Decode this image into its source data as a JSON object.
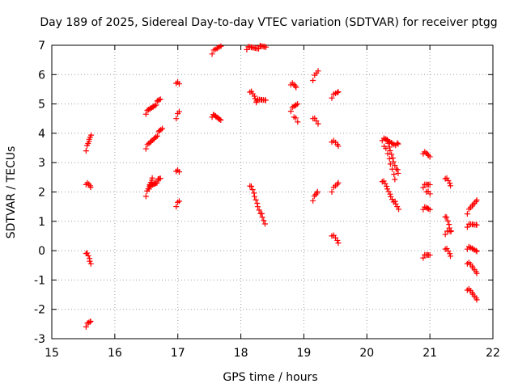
{
  "chart_data": {
    "type": "scatter",
    "title": "Day 189 of 2025, Sidereal Day-to-day VTEC variation (SDTVAR) for receiver ptgg",
    "xlabel": "GPS time / hours",
    "ylabel": "SDTVAR / TECUs",
    "xlim": [
      15,
      22
    ],
    "ylim": [
      -3,
      7
    ],
    "xticks": [
      "15",
      "16",
      "17",
      "18",
      "19",
      "20",
      "21",
      "22"
    ],
    "yticks": [
      "-3",
      "-2",
      "-1",
      "0",
      "1",
      "2",
      "3",
      "4",
      "5",
      "6",
      "7"
    ],
    "grid": true,
    "marker": "+",
    "color": "#ff0000",
    "segments": [
      {
        "x0": 15.55,
        "y0": 3.45,
        "x1": 15.62,
        "y1": 3.95,
        "n": 7
      },
      {
        "x0": 15.55,
        "y0": 2.3,
        "x1": 15.62,
        "y1": 2.15,
        "n": 5
      },
      {
        "x0": 15.55,
        "y0": -0.05,
        "x1": 15.62,
        "y1": -0.45,
        "n": 6
      },
      {
        "x0": 15.55,
        "y0": -2.55,
        "x1": 15.62,
        "y1": -2.42,
        "n": 5
      },
      {
        "x0": 16.5,
        "y0": 4.7,
        "x1": 16.72,
        "y1": 5.15,
        "n": 14
      },
      {
        "x0": 16.5,
        "y0": 3.52,
        "x1": 16.75,
        "y1": 4.15,
        "n": 14
      },
      {
        "x0": 16.5,
        "y0": 1.9,
        "x1": 16.6,
        "y1": 2.5,
        "n": 8
      },
      {
        "x0": 16.55,
        "y0": 2.15,
        "x1": 16.72,
        "y1": 2.45,
        "n": 14
      },
      {
        "x0": 16.98,
        "y0": 5.75,
        "x1": 17.02,
        "y1": 5.65,
        "n": 3
      },
      {
        "x0": 16.98,
        "y0": 4.55,
        "x1": 17.02,
        "y1": 4.7,
        "n": 3
      },
      {
        "x0": 16.98,
        "y0": 2.75,
        "x1": 17.02,
        "y1": 2.65,
        "n": 3
      },
      {
        "x0": 16.98,
        "y0": 1.55,
        "x1": 17.02,
        "y1": 1.65,
        "n": 3
      },
      {
        "x0": 17.55,
        "y0": 6.75,
        "x1": 17.68,
        "y1": 6.98,
        "n": 7
      },
      {
        "x0": 17.55,
        "y0": 4.6,
        "x1": 17.68,
        "y1": 4.5,
        "n": 10
      },
      {
        "x0": 18.1,
        "y0": 6.9,
        "x1": 18.4,
        "y1": 6.95,
        "n": 16
      },
      {
        "x0": 18.15,
        "y0": 5.45,
        "x1": 18.25,
        "y1": 5.1,
        "n": 6
      },
      {
        "x0": 18.25,
        "y0": 5.1,
        "x1": 18.4,
        "y1": 5.15,
        "n": 8
      },
      {
        "x0": 18.15,
        "y0": 2.25,
        "x1": 18.38,
        "y1": 0.9,
        "n": 14
      },
      {
        "x0": 18.8,
        "y0": 5.7,
        "x1": 18.88,
        "y1": 5.55,
        "n": 5
      },
      {
        "x0": 18.8,
        "y0": 4.8,
        "x1": 18.9,
        "y1": 5.0,
        "n": 6
      },
      {
        "x0": 18.85,
        "y0": 4.6,
        "x1": 18.9,
        "y1": 4.35,
        "n": 3
      },
      {
        "x0": 19.15,
        "y0": 5.85,
        "x1": 19.22,
        "y1": 6.1,
        "n": 4
      },
      {
        "x0": 19.15,
        "y0": 4.55,
        "x1": 19.22,
        "y1": 4.3,
        "n": 4
      },
      {
        "x0": 19.15,
        "y0": 1.75,
        "x1": 19.22,
        "y1": 2.0,
        "n": 5
      },
      {
        "x0": 19.45,
        "y0": 5.25,
        "x1": 19.55,
        "y1": 5.4,
        "n": 5
      },
      {
        "x0": 19.45,
        "y0": 3.75,
        "x1": 19.55,
        "y1": 3.55,
        "n": 5
      },
      {
        "x0": 19.45,
        "y0": 2.05,
        "x1": 19.55,
        "y1": 2.3,
        "n": 5
      },
      {
        "x0": 19.45,
        "y0": 0.55,
        "x1": 19.55,
        "y1": 0.25,
        "n": 5
      },
      {
        "x0": 20.25,
        "y0": 3.8,
        "x1": 20.5,
        "y1": 3.6,
        "n": 12
      },
      {
        "x0": 20.3,
        "y0": 3.85,
        "x1": 20.5,
        "y1": 2.6,
        "n": 12
      },
      {
        "x0": 20.28,
        "y0": 3.6,
        "x1": 20.45,
        "y1": 2.45,
        "n": 8
      },
      {
        "x0": 20.25,
        "y0": 2.4,
        "x1": 20.5,
        "y1": 1.4,
        "n": 14
      },
      {
        "x0": 20.9,
        "y0": 3.35,
        "x1": 21.0,
        "y1": 3.2,
        "n": 6
      },
      {
        "x0": 20.9,
        "y0": 2.2,
        "x1": 21.0,
        "y1": 2.25,
        "n": 6
      },
      {
        "x0": 20.95,
        "y0": 2.05,
        "x1": 21.0,
        "y1": 1.9,
        "n": 3
      },
      {
        "x0": 20.9,
        "y0": 1.45,
        "x1": 21.0,
        "y1": 1.4,
        "n": 6
      },
      {
        "x0": 20.9,
        "y0": -0.2,
        "x1": 21.0,
        "y1": -0.15,
        "n": 6
      },
      {
        "x0": 21.25,
        "y0": 2.5,
        "x1": 21.33,
        "y1": 2.2,
        "n": 5
      },
      {
        "x0": 21.25,
        "y0": 1.2,
        "x1": 21.33,
        "y1": 0.65,
        "n": 6
      },
      {
        "x0": 21.25,
        "y0": 0.6,
        "x1": 21.33,
        "y1": 0.65,
        "n": 4
      },
      {
        "x0": 21.25,
        "y0": 0.1,
        "x1": 21.33,
        "y1": -0.2,
        "n": 5
      },
      {
        "x0": 21.6,
        "y0": 1.3,
        "x1": 21.75,
        "y1": 1.75,
        "n": 8
      },
      {
        "x0": 21.6,
        "y0": 0.85,
        "x1": 21.75,
        "y1": 0.9,
        "n": 8
      },
      {
        "x0": 21.6,
        "y0": 0.1,
        "x1": 21.75,
        "y1": 0.0,
        "n": 8
      },
      {
        "x0": 21.6,
        "y0": -0.4,
        "x1": 21.75,
        "y1": -0.75,
        "n": 8
      },
      {
        "x0": 21.6,
        "y0": -1.3,
        "x1": 21.75,
        "y1": -1.65,
        "n": 8
      }
    ]
  }
}
